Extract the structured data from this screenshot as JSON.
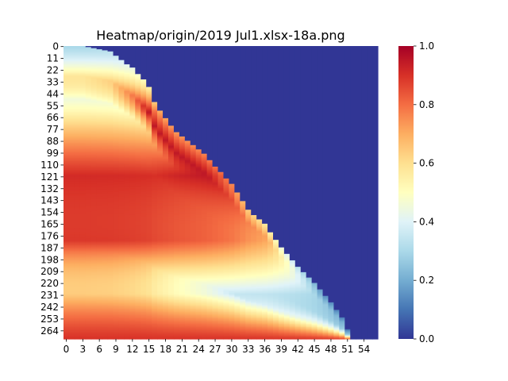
{
  "chart_data": {
    "type": "heatmap",
    "title": "Heatmap/origin/2019 Jul1.xlsx-18a.png",
    "xlabel": "",
    "ylabel": "",
    "n_cols": 57,
    "n_rows": 272,
    "x_tick_labels": [
      "0",
      "3",
      "6",
      "9",
      "12",
      "15",
      "18",
      "21",
      "24",
      "27",
      "30",
      "33",
      "36",
      "39",
      "42",
      "45",
      "48",
      "51",
      "54"
    ],
    "y_tick_labels": [
      "0",
      "11",
      "22",
      "33",
      "44",
      "55",
      "66",
      "77",
      "88",
      "99",
      "110",
      "121",
      "132",
      "143",
      "154",
      "165",
      "176",
      "187",
      "198",
      "209",
      "220",
      "231",
      "242",
      "253",
      "264"
    ],
    "colorbar": {
      "min": 0.0,
      "max": 1.0,
      "tick_labels": [
        "0.0",
        "0.2",
        "0.4",
        "0.6",
        "0.8",
        "1.0"
      ],
      "colormap": "RdYlBu_r"
    },
    "fill_value_outside": 0.0,
    "boundary_row_by_col": [
      [
        0,
        0
      ],
      [
        3,
        0
      ],
      [
        8,
        5
      ],
      [
        12,
        20
      ],
      [
        14,
        31
      ],
      [
        15,
        38
      ],
      [
        16,
        52
      ],
      [
        17,
        60
      ],
      [
        20,
        80
      ],
      [
        25,
        100
      ],
      [
        30,
        128
      ],
      [
        33,
        152
      ],
      [
        36,
        165
      ],
      [
        39,
        187
      ],
      [
        42,
        205
      ],
      [
        45,
        220
      ],
      [
        48,
        238
      ],
      [
        50,
        252
      ],
      [
        51,
        263
      ],
      [
        52,
        272
      ],
      [
        56,
        272
      ]
    ],
    "description_points": [
      {
        "row": 0,
        "values_by_col_fraction": [
          [
            0.0,
            0.3
          ],
          [
            0.5,
            0.15
          ],
          [
            1.0,
            0.1
          ]
        ]
      },
      {
        "row": 60,
        "values_by_col_fraction": [
          [
            0.0,
            0.7
          ],
          [
            0.1,
            0.95
          ],
          [
            0.18,
            0.5
          ],
          [
            1.0,
            0.95
          ]
        ]
      },
      {
        "row": 120,
        "values_by_col_fraction": [
          [
            0.0,
            0.8
          ],
          [
            0.1,
            0.95
          ],
          [
            0.3,
            0.9
          ],
          [
            1.0,
            0.95
          ]
        ]
      },
      {
        "row": 180,
        "values_by_col_fraction": [
          [
            0.0,
            0.5
          ],
          [
            0.1,
            0.7
          ],
          [
            0.4,
            0.8
          ],
          [
            1.0,
            1.0
          ]
        ]
      },
      {
        "row": 230,
        "values_by_col_fraction": [
          [
            0.0,
            0.15
          ],
          [
            0.2,
            0.3
          ],
          [
            0.7,
            0.35
          ],
          [
            1.0,
            0.95
          ]
        ]
      },
      {
        "row": 271,
        "values_by_col_fraction": [
          [
            0.0,
            0.1
          ],
          [
            0.5,
            0.25
          ],
          [
            1.0,
            0.9
          ]
        ]
      }
    ]
  }
}
